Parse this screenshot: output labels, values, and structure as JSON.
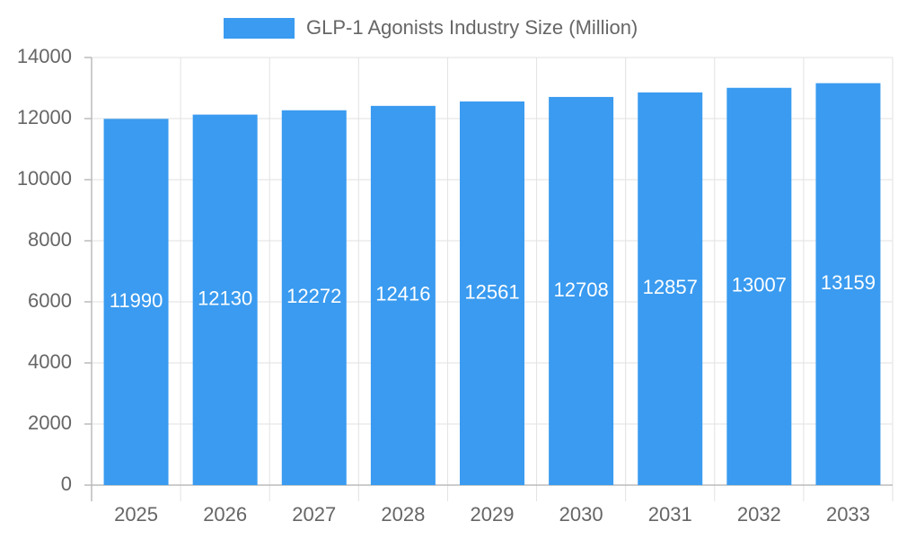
{
  "chart_data": {
    "type": "bar",
    "categories": [
      "2025",
      "2026",
      "2027",
      "2028",
      "2029",
      "2030",
      "2031",
      "2032",
      "2033"
    ],
    "series": [
      {
        "name": "GLP-1 Agonists Industry Size (Million)",
        "color": "#3a9bf0",
        "values": [
          11990,
          12130,
          12272,
          12416,
          12561,
          12708,
          12857,
          13007,
          13159
        ]
      }
    ],
    "ylim": [
      0,
      14000
    ],
    "yticks": [
      0,
      2000,
      4000,
      6000,
      8000,
      10000,
      12000,
      14000
    ],
    "grid": true,
    "legend": "top"
  }
}
